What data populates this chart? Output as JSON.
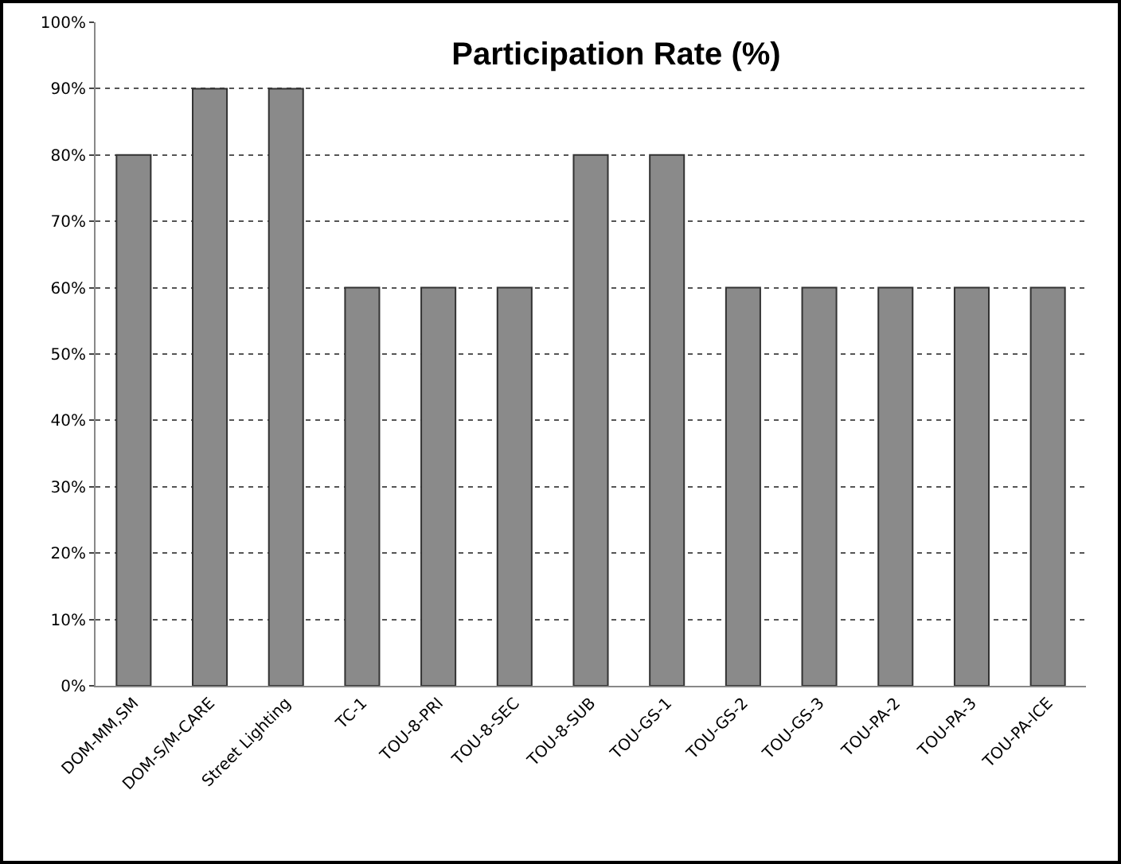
{
  "chart_data": {
    "type": "bar",
    "title": "Participation Rate (%)",
    "categories": [
      "DOM-MM,SM",
      "DOM-S/M-CARE",
      "Street Lighting",
      "TC-1",
      "TOU-8-PRI",
      "TOU-8-SEC",
      "TOU-8-SUB",
      "TOU-GS-1",
      "TOU-GS-2",
      "TOU-GS-3",
      "TOU-PA-2",
      "TOU-PA-3",
      "TOU-PA-ICE"
    ],
    "values": [
      80,
      90,
      90,
      60,
      60,
      60,
      80,
      80,
      60,
      60,
      60,
      60,
      60
    ],
    "color": "#8a8a8a",
    "ylim": [
      0,
      100
    ],
    "yticks": [
      {
        "value": 0,
        "label": "0%"
      },
      {
        "value": 10,
        "label": "10%"
      },
      {
        "value": 20,
        "label": "20%"
      },
      {
        "value": 30,
        "label": "30%"
      },
      {
        "value": 40,
        "label": "40%"
      },
      {
        "value": 50,
        "label": "50%"
      },
      {
        "value": 60,
        "label": "60%"
      },
      {
        "value": 70,
        "label": "70%"
      },
      {
        "value": 80,
        "label": "80%"
      },
      {
        "value": 90,
        "label": "90%"
      },
      {
        "value": 100,
        "label": "100%"
      }
    ],
    "grid": "y",
    "legend": false
  }
}
